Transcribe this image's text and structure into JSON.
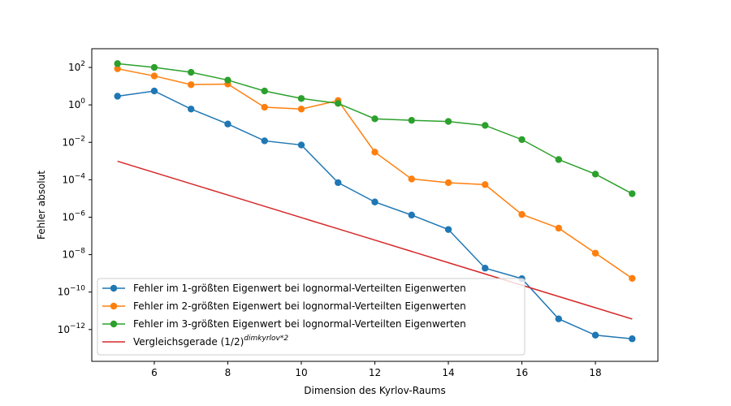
{
  "chart_data": {
    "type": "line",
    "xlabel": "Dimension des Kyrlov-Raums",
    "ylabel": "Fehler absolut",
    "xlim": [
      4.3,
      19.7
    ],
    "ylim_log10": [
      -13.7,
      3.0
    ],
    "y_scale": "log",
    "x_ticks": [
      6,
      8,
      10,
      12,
      14,
      16,
      18
    ],
    "y_tick_exponents": [
      2,
      0,
      -2,
      -4,
      -6,
      -8,
      -10,
      -12
    ],
    "grid": false,
    "legend_position": "lower-left",
    "x": [
      5,
      6,
      7,
      8,
      9,
      10,
      11,
      12,
      13,
      14,
      15,
      16,
      17,
      18,
      19
    ],
    "series": [
      {
        "name": "Fehler im 1-größten Eigenwert bei lognormal-Verteilten Eigenwerten",
        "color": "#1f77b4",
        "marker": "circle",
        "y": [
          2.9,
          5.5,
          0.6,
          0.095,
          0.012,
          0.0072,
          7e-05,
          6.5e-06,
          1.3e-06,
          2.2e-07,
          1.9e-09,
          5.2e-10,
          3.7e-12,
          5e-13,
          3.2e-13
        ]
      },
      {
        "name": "Fehler im 2-größten Eigenwert bei lognormal-Verteilten Eigenwerten",
        "color": "#ff7f0e",
        "marker": "circle",
        "y": [
          85,
          35,
          12,
          13,
          0.75,
          0.6,
          1.7,
          0.003,
          0.00011,
          7e-05,
          5.5e-05,
          1.4e-06,
          2.6e-07,
          1.2e-08,
          5.4e-10
        ]
      },
      {
        "name": "Fehler im 3-größten Eigenwert bei lognormal-Verteilten Eigenwerten",
        "color": "#2ca02c",
        "marker": "circle",
        "y": [
          160,
          100,
          55,
          21,
          5.5,
          2.2,
          1.2,
          0.18,
          0.15,
          0.13,
          0.08,
          0.014,
          0.0012,
          0.0002,
          1.8e-05
        ]
      },
      {
        "name": "Vergleichsgerade (1/2)",
        "name_superscript": "dimkyrlov*2",
        "color": "#d62728",
        "marker": "none",
        "y": [
          0.0009765625,
          0.000244140625,
          6.103515625e-05,
          1.52587890625e-05,
          3.814697265625e-06,
          9.5367431640625e-07,
          2.384185791015625e-07,
          5.960464477539063e-08,
          1.4901161193847656e-08,
          3.725290298461914e-09,
          9.313225746154785e-10,
          2.3283064365386963e-10,
          5.820766091346741e-11,
          1.4551915228366852e-11,
          3.637978807091713e-12
        ]
      }
    ]
  }
}
